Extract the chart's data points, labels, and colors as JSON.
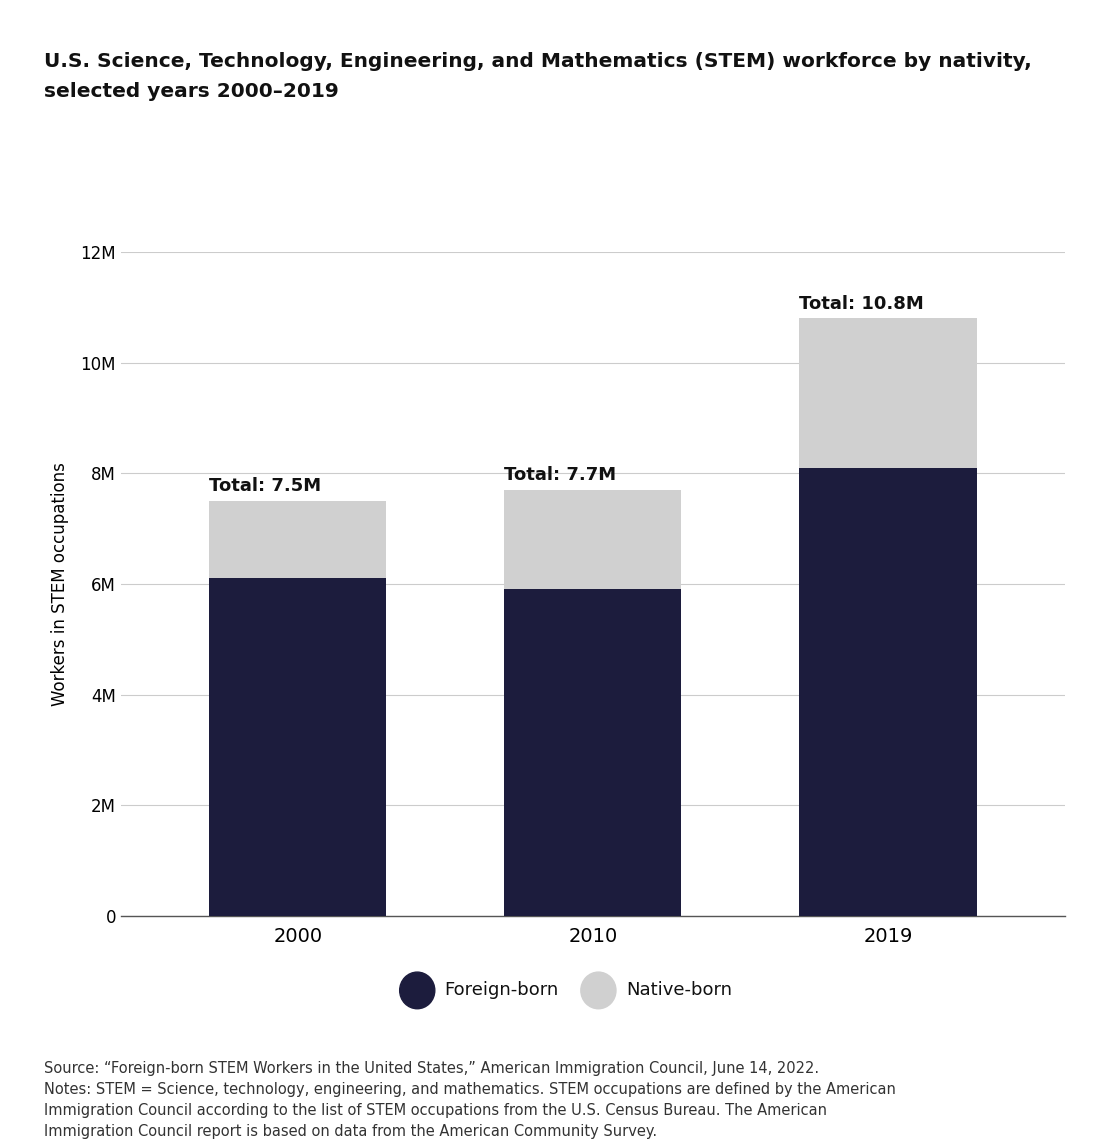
{
  "title_line1": "U.S. Science, Technology, Engineering, and Mathematics (STEM) workforce by nativity,",
  "title_line2": "selected years 2000–2019",
  "years": [
    "2000",
    "2010",
    "2019"
  ],
  "foreign_born": [
    6100000,
    5900000,
    8100000
  ],
  "native_born": [
    1400000,
    1800000,
    2700000
  ],
  "totals": [
    "7.5M",
    "7.7M",
    "10.8M"
  ],
  "ylabel": "Workers in STEM occupations",
  "ylim": [
    0,
    12000000
  ],
  "yticks": [
    0,
    2000000,
    4000000,
    6000000,
    8000000,
    10000000,
    12000000
  ],
  "ytick_labels": [
    "0",
    "2M",
    "4M",
    "6M",
    "8M",
    "10M",
    "12M"
  ],
  "foreign_color": "#1c1c3d",
  "native_color": "#d0d0d0",
  "bar_width": 0.6,
  "legend_foreign": "Foreign-born",
  "legend_native": "Native-born",
  "source_text": "Source: “Foreign-born STEM Workers in the United States,” American Immigration Council, June 14, 2022.\nNotes: STEM = Science, technology, engineering, and mathematics. STEM occupations are defined by the American\nImmigration Council according to the list of STEM occupations from the U.S. Census Bureau. The American\nImmigration Council report is based on data from the American Community Survey.",
  "background_color": "#ffffff",
  "title_fontsize": 14.5,
  "axis_label_fontsize": 12,
  "tick_fontsize": 12,
  "annotation_fontsize": 13,
  "source_fontsize": 10.5,
  "grid_color": "#cccccc"
}
